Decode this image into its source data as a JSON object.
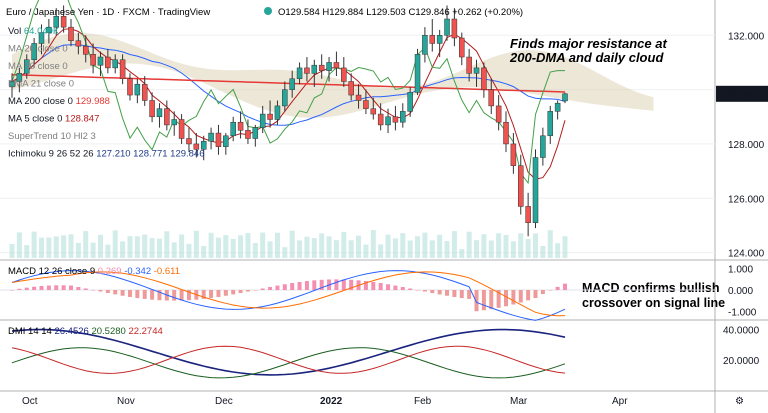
{
  "header": {
    "symbol": "Euro / Japanese Yen · 1D · FXCM · TradingView",
    "ohlc": "O129.584 H129.884 L129.503 C129.846 +0.262 (+0.20%)"
  },
  "indicators": [
    {
      "name": "Vol",
      "value": "64.049K",
      "color": "#26a69a"
    },
    {
      "name": "MA 20 close 0",
      "value": "",
      "color": "#7f7f7f"
    },
    {
      "name": "MA 50 close 0",
      "value": "",
      "color": "#7f7f7f"
    },
    {
      "name": "EMA 21 close 0",
      "value": "",
      "color": "#7f7f7f"
    },
    {
      "name": "MA 200 close 0",
      "value": "129.988",
      "color": "#e53935"
    },
    {
      "name": "MA 5 close 0",
      "value": "128.847",
      "color": "#b71c1c"
    },
    {
      "name": "SuperTrend 10 Hl2 3",
      "value": "",
      "color": "#7f7f7f"
    },
    {
      "name": "Ichimoku 9 26 52 26",
      "value": "127.210  128.771  129.846",
      "color": "#1e3a8a"
    }
  ],
  "annotations": {
    "top": [
      "Finds major resistance at",
      "200-DMA and daily cloud"
    ],
    "macd": [
      "MACD confirms bullish",
      "crossover on signal line"
    ]
  },
  "price_axis": [
    "132.000",
    "130.000",
    "128.000",
    "126.000",
    "124.000"
  ],
  "price_badge": "129.846",
  "macd_axis": [
    "1.000",
    "0.000",
    "-1.000"
  ],
  "dmi_axis": [
    "40.0000",
    "20.0000"
  ],
  "macd_label": {
    "name": "MACD 12 26 close 9",
    "v1": "0.269",
    "v2": "-0.342",
    "v3": "-0.611"
  },
  "dmi_label": {
    "name": "DMI 14 14",
    "v1": "26.4526",
    "v2": "20.5280",
    "v3": "22.2744"
  },
  "time_axis": [
    "Oct",
    "Nov",
    "Dec",
    "2022",
    "Feb",
    "Mar",
    "Apr"
  ],
  "colors": {
    "bull": "#26a69a",
    "bear": "#ef5350",
    "ma200": "#e53935",
    "cloud": "#c8e6c9",
    "macd": "#2962ff",
    "signal": "#ff6d00",
    "hist_pos": "#f48fb1",
    "hist_neg": "#ef9a9a",
    "dmi_adx": "#1a237e",
    "dmi_plus": "#1b5e20",
    "dmi_minus": "#c62828"
  },
  "chart_data": {
    "type": "candlestick",
    "title": "Euro / Japanese Yen · 1D · FXCM",
    "ylim": [
      123.8,
      133.3
    ],
    "candles": [
      [
        130.1,
        130.6,
        129.7,
        130.3
      ],
      [
        130.3,
        130.8,
        129.9,
        130.6
      ],
      [
        130.6,
        131.3,
        130.4,
        131.1
      ],
      [
        131.1,
        131.9,
        130.8,
        131.7
      ],
      [
        131.7,
        132.4,
        131.3,
        132.1
      ],
      [
        132.1,
        132.6,
        131.7,
        132.3
      ],
      [
        132.3,
        133.0,
        132.0,
        132.7
      ],
      [
        132.7,
        133.1,
        132.1,
        132.3
      ],
      [
        132.3,
        132.6,
        131.6,
        131.8
      ],
      [
        131.8,
        132.1,
        131.3,
        131.6
      ],
      [
        131.6,
        132.0,
        131.0,
        131.3
      ],
      [
        131.3,
        131.7,
        130.6,
        130.9
      ],
      [
        130.9,
        131.4,
        130.5,
        131.2
      ],
      [
        131.2,
        131.5,
        130.6,
        130.8
      ],
      [
        130.8,
        131.3,
        130.6,
        131.1
      ],
      [
        131.1,
        131.3,
        130.2,
        130.4
      ],
      [
        130.4,
        130.6,
        129.6,
        129.8
      ],
      [
        129.8,
        130.4,
        129.5,
        130.2
      ],
      [
        130.2,
        130.5,
        129.4,
        129.6
      ],
      [
        129.6,
        129.9,
        128.8,
        129.0
      ],
      [
        129.0,
        129.5,
        128.6,
        129.3
      ],
      [
        129.3,
        129.6,
        128.5,
        128.7
      ],
      [
        128.7,
        129.2,
        128.3,
        128.9
      ],
      [
        128.9,
        129.1,
        128.0,
        128.2
      ],
      [
        128.2,
        128.6,
        127.7,
        128.0
      ],
      [
        128.0,
        128.4,
        127.5,
        127.8
      ],
      [
        127.8,
        128.3,
        127.4,
        128.1
      ],
      [
        128.1,
        128.6,
        127.8,
        128.4
      ],
      [
        128.4,
        128.7,
        127.6,
        127.9
      ],
      [
        127.9,
        128.4,
        127.6,
        128.3
      ],
      [
        128.3,
        129.0,
        128.1,
        128.8
      ],
      [
        128.8,
        129.2,
        128.2,
        128.5
      ],
      [
        128.5,
        128.9,
        128.0,
        128.2
      ],
      [
        128.2,
        128.7,
        127.9,
        128.6
      ],
      [
        128.6,
        129.4,
        128.4,
        129.1
      ],
      [
        129.1,
        129.6,
        128.6,
        128.9
      ],
      [
        128.9,
        129.6,
        128.7,
        129.4
      ],
      [
        129.4,
        130.3,
        129.2,
        130.0
      ],
      [
        130.0,
        130.7,
        129.7,
        130.4
      ],
      [
        130.4,
        131.0,
        130.2,
        130.8
      ],
      [
        130.8,
        131.2,
        130.3,
        130.6
      ],
      [
        130.6,
        131.1,
        130.1,
        130.9
      ],
      [
        130.9,
        131.3,
        130.4,
        130.7
      ],
      [
        130.7,
        131.2,
        130.3,
        131.0
      ],
      [
        131.0,
        131.4,
        130.5,
        130.8
      ],
      [
        130.8,
        131.2,
        130.1,
        130.3
      ],
      [
        130.3,
        130.6,
        129.6,
        129.8
      ],
      [
        129.8,
        130.2,
        129.3,
        129.6
      ],
      [
        129.6,
        130.0,
        129.1,
        129.3
      ],
      [
        129.3,
        129.7,
        128.9,
        129.1
      ],
      [
        129.1,
        129.5,
        128.5,
        128.7
      ],
      [
        128.7,
        129.3,
        128.4,
        129.0
      ],
      [
        129.0,
        129.4,
        128.5,
        128.8
      ],
      [
        128.8,
        129.5,
        128.6,
        129.2
      ],
      [
        129.2,
        130.1,
        129.0,
        129.9
      ],
      [
        129.9,
        131.5,
        129.8,
        131.3
      ],
      [
        131.3,
        132.3,
        131.0,
        132.0
      ],
      [
        132.0,
        132.6,
        131.4,
        131.7
      ],
      [
        131.7,
        132.2,
        131.2,
        132.0
      ],
      [
        132.0,
        133.1,
        131.8,
        132.6
      ],
      [
        132.6,
        133.0,
        131.6,
        131.9
      ],
      [
        131.9,
        132.1,
        130.9,
        131.2
      ],
      [
        131.2,
        131.5,
        130.3,
        130.6
      ],
      [
        130.6,
        131.1,
        130.1,
        130.8
      ],
      [
        130.8,
        131.0,
        129.7,
        130.0
      ],
      [
        130.0,
        130.4,
        129.1,
        129.4
      ],
      [
        129.4,
        129.8,
        128.5,
        128.8
      ],
      [
        128.8,
        129.2,
        127.7,
        128.0
      ],
      [
        128.0,
        128.4,
        126.9,
        127.2
      ],
      [
        127.2,
        127.6,
        125.4,
        125.7
      ],
      [
        125.7,
        126.2,
        124.6,
        125.1
      ],
      [
        125.1,
        127.8,
        124.9,
        127.5
      ],
      [
        127.5,
        128.6,
        127.2,
        128.3
      ],
      [
        128.3,
        129.4,
        128.0,
        129.2
      ],
      [
        129.2,
        129.6,
        128.9,
        129.5
      ],
      [
        129.584,
        129.884,
        129.503,
        129.846
      ]
    ],
    "price_labels": [
      132.0,
      130.0,
      128.0,
      126.0,
      124.0
    ],
    "macd_ylim": [
      -1.3,
      1.3
    ],
    "dmi_ylim": [
      0,
      45
    ]
  }
}
